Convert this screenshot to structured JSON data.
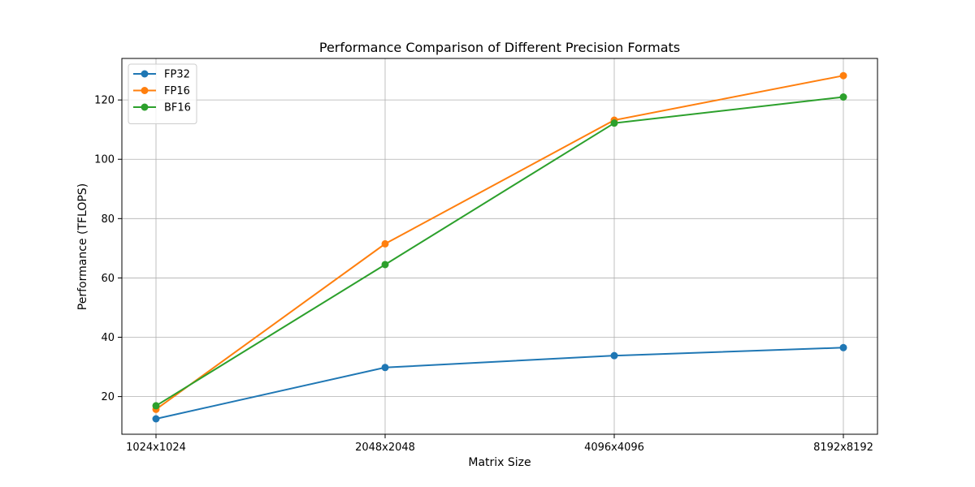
{
  "chart_data": {
    "type": "line",
    "title": "Performance Comparison of Different Precision Formats",
    "xlabel": "Matrix Size",
    "ylabel": "Performance (TFLOPS)",
    "categories": [
      "1024x1024",
      "2048x2048",
      "4096x4096",
      "8192x8192"
    ],
    "y_ticks": [
      20,
      40,
      60,
      80,
      100,
      120
    ],
    "ylim": [
      7.3,
      134
    ],
    "grid": true,
    "legend_position": "top-left",
    "markers": "circle",
    "series": [
      {
        "name": "FP32",
        "color": "#1f77b4",
        "values": [
          12.5,
          29.8,
          33.8,
          36.5
        ]
      },
      {
        "name": "FP16",
        "color": "#ff7f0e",
        "values": [
          15.7,
          71.5,
          113.2,
          128.2
        ]
      },
      {
        "name": "BF16",
        "color": "#2ca02c",
        "values": [
          16.9,
          64.5,
          112.2,
          121.0
        ]
      }
    ]
  }
}
